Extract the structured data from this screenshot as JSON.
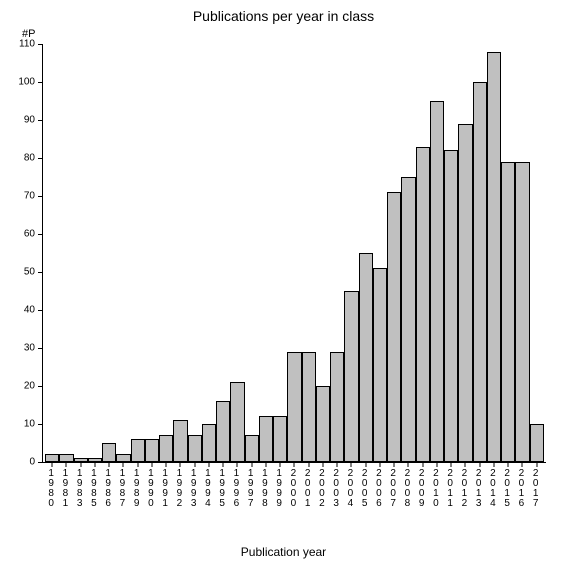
{
  "chart": {
    "type": "bar",
    "title": "Publications per year in class",
    "title_fontsize": 14,
    "y_unit_label": "#P",
    "x_axis_title": "Publication year",
    "label_fontsize": 12,
    "tick_fontsize": 10,
    "ylim": [
      0,
      110
    ],
    "ytick_step": 10,
    "bar_color": "#c0c0c0",
    "bar_border_color": "#000000",
    "background_color": "#ffffff",
    "axis_color": "#000000",
    "bar_width": 1.0,
    "categories": [
      "1980",
      "1981",
      "1983",
      "1985",
      "1986",
      "1987",
      "1989",
      "1990",
      "1991",
      "1992",
      "1993",
      "1994",
      "1995",
      "1996",
      "1997",
      "1998",
      "1999",
      "2000",
      "2001",
      "2002",
      "2003",
      "2004",
      "2005",
      "2006",
      "2007",
      "2008",
      "2009",
      "2010",
      "2011",
      "2012",
      "2013",
      "2014",
      "2015",
      "2016",
      "2017"
    ],
    "values": [
      2,
      2,
      1,
      1,
      5,
      2,
      6,
      6,
      7,
      11,
      7,
      10,
      16,
      21,
      7,
      12,
      12,
      29,
      29,
      20,
      29,
      45,
      55,
      51,
      71,
      75,
      83,
      95,
      82,
      89,
      100,
      108,
      79,
      79,
      10
    ]
  }
}
